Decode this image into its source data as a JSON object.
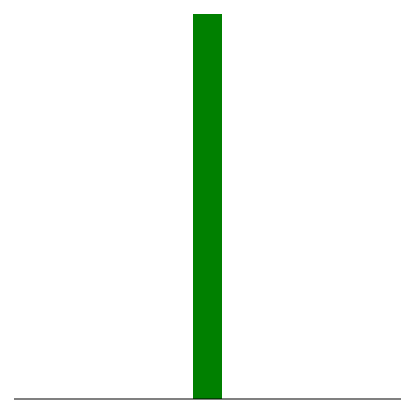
{
  "chart_data": {
    "type": "bar",
    "categories": [
      ""
    ],
    "values": [
      1
    ],
    "ylim": [
      0,
      1
    ],
    "bar_color": "#008000",
    "axis_color": "#000000",
    "grid": false,
    "legend": "none"
  }
}
